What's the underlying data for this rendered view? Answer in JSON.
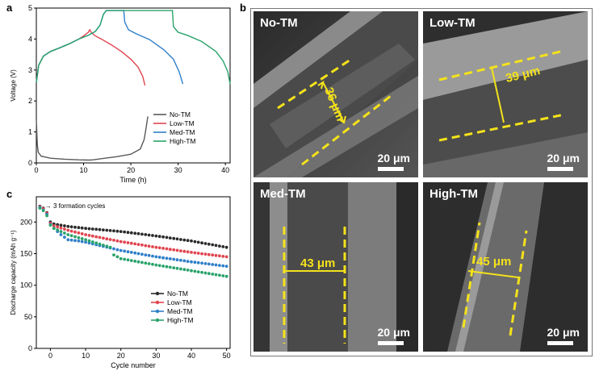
{
  "panels": {
    "a": "a",
    "b": "b",
    "c": "c"
  },
  "chart_data": [
    {
      "type": "line",
      "panel": "a",
      "xlabel": "Time (h)",
      "ylabel": "Voltage (V)",
      "xlim": [
        0,
        41
      ],
      "ylim": [
        0,
        5
      ],
      "xticks": [
        "0",
        "10",
        "20",
        "30",
        "40"
      ],
      "yticks": [
        "0",
        "1",
        "2",
        "3",
        "4",
        "5"
      ],
      "legend": "bottom-right",
      "colors": {
        "No-TM": "#5a5a5a",
        "Low-TM": "#e0454f",
        "Med-TM": "#2f7fc9",
        "High-TM": "#2aa36b"
      },
      "series": [
        {
          "name": "No-TM",
          "x": [
            0,
            0.2,
            0.4,
            1,
            3,
            6,
            9,
            11.2,
            12,
            14,
            17,
            20,
            22,
            22.8,
            23.2,
            23.6
          ],
          "y": [
            1.4,
            0.6,
            0.35,
            0.22,
            0.15,
            0.12,
            0.1,
            0.09,
            0.1,
            0.14,
            0.2,
            0.28,
            0.45,
            0.75,
            1.1,
            1.5
          ]
        },
        {
          "name": "Low-TM",
          "x": [
            0,
            0.5,
            1.5,
            3,
            5,
            7,
            9,
            10,
            11,
            11.3,
            11.7,
            12.5,
            14,
            16,
            18,
            20,
            21.5,
            22.5,
            23
          ],
          "y": [
            2.6,
            3.15,
            3.45,
            3.6,
            3.72,
            3.85,
            4.0,
            4.1,
            4.22,
            4.3,
            4.2,
            4.1,
            3.98,
            3.8,
            3.6,
            3.35,
            3.1,
            2.8,
            2.5
          ]
        },
        {
          "name": "Med-TM",
          "x": [
            0,
            0.5,
            1.5,
            3,
            5,
            7,
            9,
            11,
            12.5,
            13.5,
            14.2,
            14.8,
            18.5,
            18.7,
            19.5,
            21,
            24,
            27,
            29,
            30.2,
            31
          ],
          "y": [
            2.6,
            3.15,
            3.45,
            3.6,
            3.72,
            3.85,
            4.0,
            4.12,
            4.25,
            4.45,
            4.8,
            4.92,
            4.92,
            4.55,
            4.3,
            4.18,
            3.98,
            3.65,
            3.35,
            2.95,
            2.55
          ]
        },
        {
          "name": "High-TM",
          "x": [
            0,
            0.5,
            1.5,
            3,
            5,
            7,
            9,
            11,
            12.5,
            13.5,
            14.2,
            14.8,
            28.8,
            29,
            30,
            32,
            35,
            38,
            39.5,
            40.5,
            41
          ],
          "y": [
            2.6,
            3.15,
            3.45,
            3.6,
            3.72,
            3.85,
            4.0,
            4.12,
            4.25,
            4.45,
            4.8,
            4.92,
            4.92,
            4.4,
            4.22,
            4.12,
            3.92,
            3.6,
            3.3,
            2.95,
            2.55
          ]
        }
      ]
    },
    {
      "type": "scatter",
      "panel": "c",
      "xlabel": "Cycle number",
      "ylabel": "Discharge capacity (mAh g⁻¹)",
      "xlim": [
        -4,
        51
      ],
      "ylim": [
        0,
        240
      ],
      "xticks": [
        "0",
        "10",
        "20",
        "30",
        "40",
        "50"
      ],
      "yticks": [
        "0",
        "50",
        "100",
        "150",
        "200"
      ],
      "annotation": "3 formation cycles",
      "legend": "bottom-right",
      "colors": {
        "No-TM": "#2b2b2b",
        "Low-TM": "#e0454f",
        "Med-TM": "#2f7fc9",
        "High-TM": "#2aa36b"
      },
      "series": [
        {
          "name": "No-TM",
          "x": [
            -3,
            -2,
            -1,
            0,
            1,
            5,
            10,
            20,
            30,
            40,
            50
          ],
          "y": [
            225,
            222,
            215,
            200,
            197,
            193,
            190,
            185,
            178,
            170,
            160
          ]
        },
        {
          "name": "Low-TM",
          "x": [
            -3,
            -2,
            -1,
            0,
            1,
            5,
            10,
            20,
            30,
            40,
            50
          ],
          "y": [
            224,
            221,
            214,
            198,
            194,
            187,
            180,
            169,
            160,
            152,
            145
          ]
        },
        {
          "name": "Med-TM",
          "x": [
            -3,
            -2,
            -1,
            0,
            1,
            3,
            5,
            8,
            10,
            20,
            30,
            40,
            50
          ],
          "y": [
            223,
            219,
            212,
            196,
            190,
            180,
            172,
            170,
            168,
            155,
            145,
            137,
            130
          ]
        },
        {
          "name": "High-TM",
          "x": [
            -3,
            -2,
            -1,
            0,
            1,
            5,
            10,
            17,
            18,
            20,
            30,
            40,
            50
          ],
          "y": [
            222,
            218,
            210,
            195,
            190,
            180,
            172,
            160,
            148,
            142,
            132,
            123,
            114
          ]
        }
      ]
    }
  ],
  "sem": [
    {
      "title": "No-TM",
      "thickness": "36 μm",
      "scale": "20 μm"
    },
    {
      "title": "Low-TM",
      "thickness": "39 μm",
      "scale": "20 μm"
    },
    {
      "title": "Med-TM",
      "thickness": "43 μm",
      "scale": "20 μm"
    },
    {
      "title": "High-TM",
      "thickness": "45 μm",
      "scale": "20 μm"
    }
  ]
}
